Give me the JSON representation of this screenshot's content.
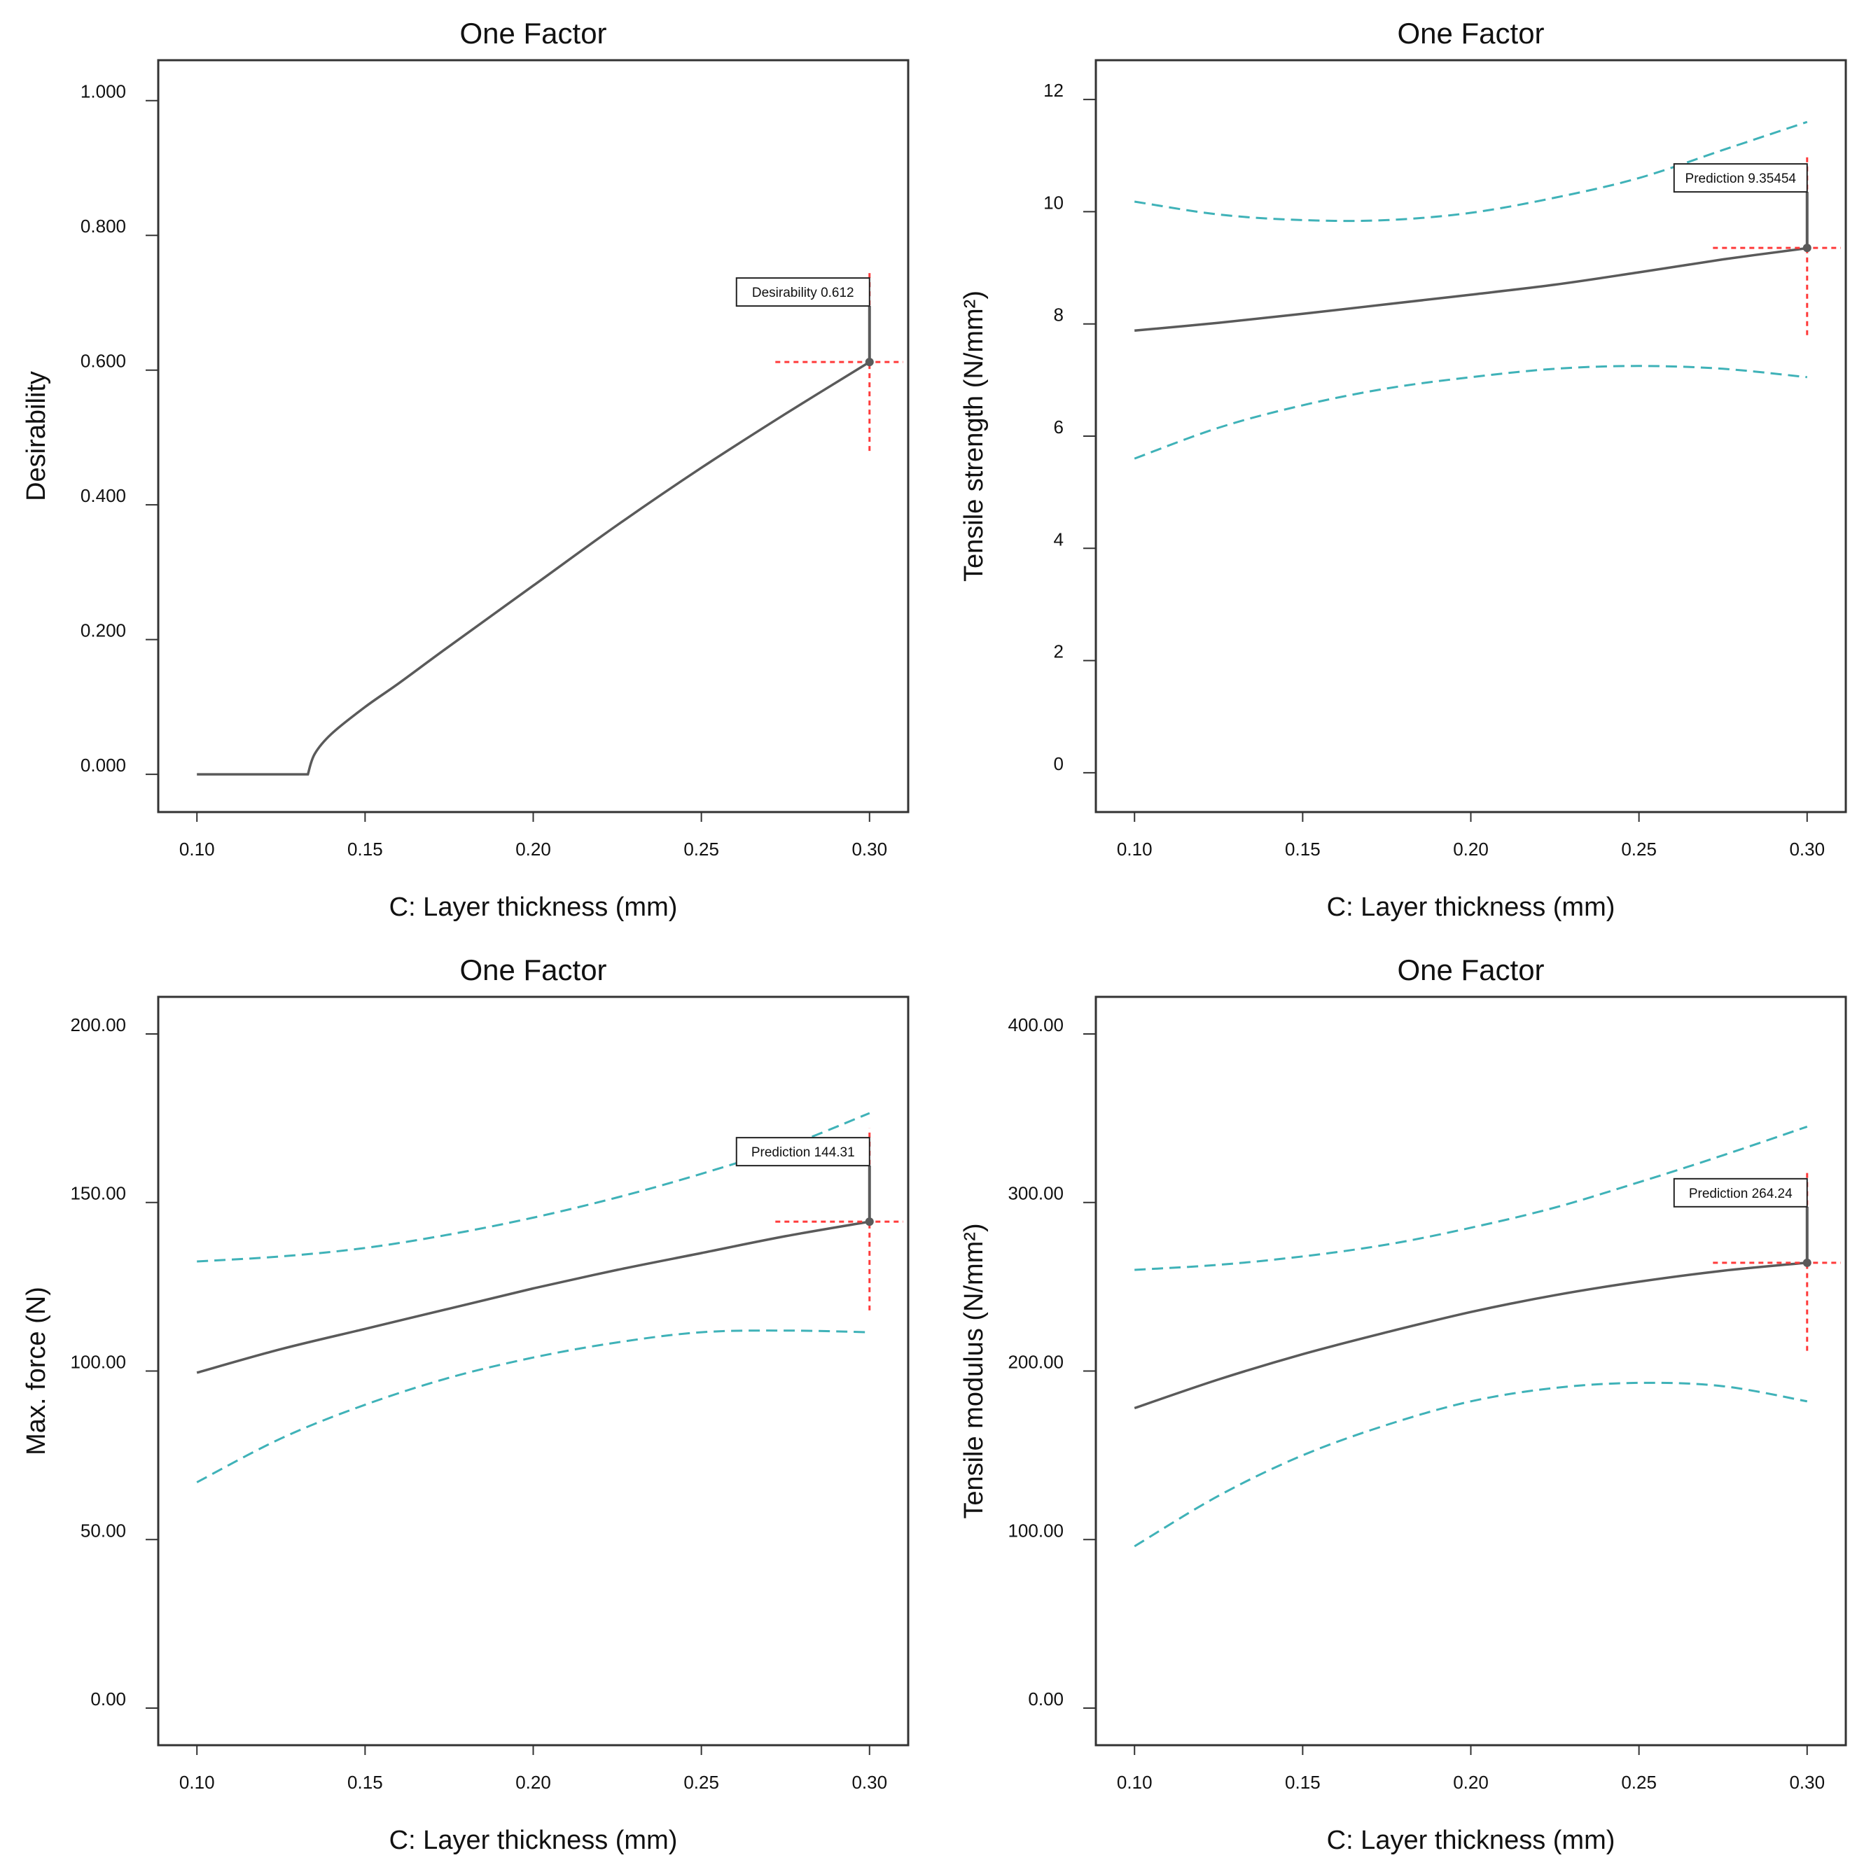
{
  "colors": {
    "fit_line": "#5a5a5a",
    "ci_band": "#3fb2b8",
    "marker": "#ff3b3b",
    "frame": "#333333",
    "text": "#111111"
  },
  "chart_data": [
    {
      "type": "line",
      "title": "One Factor",
      "xlabel": "C: Layer thickness (mm)",
      "ylabel": "Desirability",
      "xlim": [
        0.0885,
        0.3115
      ],
      "ylim": [
        -0.056,
        1.06
      ],
      "xticks": [
        0.1,
        0.15,
        0.2,
        0.25,
        0.3
      ],
      "xtick_labels": [
        "0.10",
        "0.15",
        "0.20",
        "0.25",
        "0.30"
      ],
      "yticks": [
        0,
        0.2,
        0.4,
        0.6,
        0.8,
        1.0
      ],
      "ytick_labels": [
        "0.000",
        "0.200",
        "0.400",
        "0.600",
        "0.800",
        "1.000"
      ],
      "series": [
        {
          "name": "Desirability",
          "role": "fit",
          "x": [
            0.1,
            0.133,
            0.135,
            0.14,
            0.15,
            0.16,
            0.175,
            0.2,
            0.225,
            0.25,
            0.275,
            0.3
          ],
          "values": [
            0,
            0,
            0.03,
            0.06,
            0.1,
            0.135,
            0.19,
            0.28,
            0.37,
            0.455,
            0.535,
            0.612
          ]
        }
      ],
      "prediction": {
        "x": 0.3,
        "y": 0.612,
        "label": "Desirability 0.612",
        "v_range": [
          0.48,
          0.75
        ],
        "h_range": [
          0.272,
          0.31
        ]
      }
    },
    {
      "type": "line",
      "title": "One Factor",
      "xlabel": "C: Layer thickness (mm)",
      "ylabel": "Tensile strength (N/mm²)",
      "xlim": [
        0.0885,
        0.3115
      ],
      "ylim": [
        -0.7,
        12.7
      ],
      "xticks": [
        0.1,
        0.15,
        0.2,
        0.25,
        0.3
      ],
      "xtick_labels": [
        "0.10",
        "0.15",
        "0.20",
        "0.25",
        "0.30"
      ],
      "yticks": [
        0,
        2,
        4,
        6,
        8,
        10,
        12
      ],
      "ytick_labels": [
        "0",
        "2",
        "4",
        "6",
        "8",
        "10",
        "12"
      ],
      "series": [
        {
          "name": "Prediction",
          "role": "fit",
          "x": [
            0.1,
            0.125,
            0.15,
            0.175,
            0.2,
            0.225,
            0.25,
            0.275,
            0.3
          ],
          "values": [
            7.88,
            8.02,
            8.18,
            8.35,
            8.52,
            8.7,
            8.92,
            9.15,
            9.35
          ]
        },
        {
          "name": "Upper 95% CI",
          "role": "ci",
          "x": [
            0.1,
            0.125,
            0.15,
            0.175,
            0.2,
            0.225,
            0.25,
            0.275,
            0.3
          ],
          "values": [
            10.18,
            9.95,
            9.85,
            9.85,
            9.98,
            10.25,
            10.6,
            11.1,
            11.6
          ]
        },
        {
          "name": "Lower 95% CI",
          "role": "ci",
          "x": [
            0.1,
            0.125,
            0.15,
            0.175,
            0.2,
            0.225,
            0.25,
            0.275,
            0.3
          ],
          "values": [
            5.6,
            6.15,
            6.55,
            6.85,
            7.05,
            7.2,
            7.25,
            7.2,
            7.05
          ]
        }
      ],
      "prediction": {
        "x": 0.3,
        "y": 9.35454,
        "label": "Prediction 9.35454",
        "v_range": [
          7.8,
          11.0
        ],
        "h_range": [
          0.272,
          0.31
        ]
      }
    },
    {
      "type": "line",
      "title": "One Factor",
      "xlabel": "C: Layer thickness (mm)",
      "ylabel": "Max. force (N)",
      "xlim": [
        0.0885,
        0.3115
      ],
      "ylim": [
        -11,
        211
      ],
      "xticks": [
        0.1,
        0.15,
        0.2,
        0.25,
        0.3
      ],
      "xtick_labels": [
        "0.10",
        "0.15",
        "0.20",
        "0.25",
        "0.30"
      ],
      "yticks": [
        0,
        50,
        100,
        150,
        200
      ],
      "ytick_labels": [
        "0.00",
        "50.00",
        "100.00",
        "150.00",
        "200.00"
      ],
      "series": [
        {
          "name": "Prediction",
          "role": "fit",
          "x": [
            0.1,
            0.125,
            0.15,
            0.175,
            0.2,
            0.225,
            0.25,
            0.275,
            0.3
          ],
          "values": [
            99.5,
            106.5,
            112.5,
            118.5,
            124.5,
            130,
            135,
            140,
            144.31
          ]
        },
        {
          "name": "Upper 95% CI",
          "role": "ci",
          "x": [
            0.1,
            0.125,
            0.15,
            0.175,
            0.2,
            0.225,
            0.25,
            0.275,
            0.3
          ],
          "values": [
            132.5,
            134,
            136.5,
            140.5,
            145.5,
            151.5,
            158.5,
            166.5,
            176.5
          ]
        },
        {
          "name": "Lower 95% CI",
          "role": "ci",
          "x": [
            0.1,
            0.125,
            0.15,
            0.175,
            0.2,
            0.225,
            0.25,
            0.275,
            0.3
          ],
          "values": [
            67,
            80,
            90,
            98,
            104,
            108.5,
            111.5,
            112,
            111.5
          ]
        }
      ],
      "prediction": {
        "x": 0.3,
        "y": 144.31,
        "label": "Prediction 144.31",
        "v_range": [
          118,
          172
        ],
        "h_range": [
          0.272,
          0.31
        ]
      }
    },
    {
      "type": "line",
      "title": "One Factor",
      "xlabel": "C: Layer thickness (mm)",
      "ylabel": "Tensile modulus (N/mm²)",
      "xlim": [
        0.0885,
        0.3115
      ],
      "ylim": [
        -22,
        422
      ],
      "xticks": [
        0.1,
        0.15,
        0.2,
        0.25,
        0.3
      ],
      "xtick_labels": [
        "0.10",
        "0.15",
        "0.20",
        "0.25",
        "0.30"
      ],
      "yticks": [
        0,
        100,
        200,
        300,
        400
      ],
      "ytick_labels": [
        "0.00",
        "100.00",
        "200.00",
        "300.00",
        "400.00"
      ],
      "series": [
        {
          "name": "Prediction",
          "role": "fit",
          "x": [
            0.1,
            0.125,
            0.15,
            0.175,
            0.2,
            0.225,
            0.25,
            0.275,
            0.3
          ],
          "values": [
            178,
            195,
            210,
            223,
            235,
            245,
            253,
            259.5,
            264.24
          ]
        },
        {
          "name": "Upper 95% CI",
          "role": "ci",
          "x": [
            0.1,
            0.125,
            0.15,
            0.175,
            0.2,
            0.225,
            0.25,
            0.275,
            0.3
          ],
          "values": [
            260,
            263,
            268,
            275,
            285,
            297,
            312,
            328,
            345
          ]
        },
        {
          "name": "Lower 95% CI",
          "role": "ci",
          "x": [
            0.1,
            0.125,
            0.15,
            0.175,
            0.2,
            0.225,
            0.25,
            0.275,
            0.3
          ],
          "values": [
            96,
            126,
            150,
            168,
            182,
            190,
            193,
            191,
            182
          ]
        }
      ],
      "prediction": {
        "x": 0.3,
        "y": 264.24,
        "label": "Prediction 264.24",
        "v_range": [
          212,
          320
        ],
        "h_range": [
          0.272,
          0.31
        ]
      }
    }
  ]
}
